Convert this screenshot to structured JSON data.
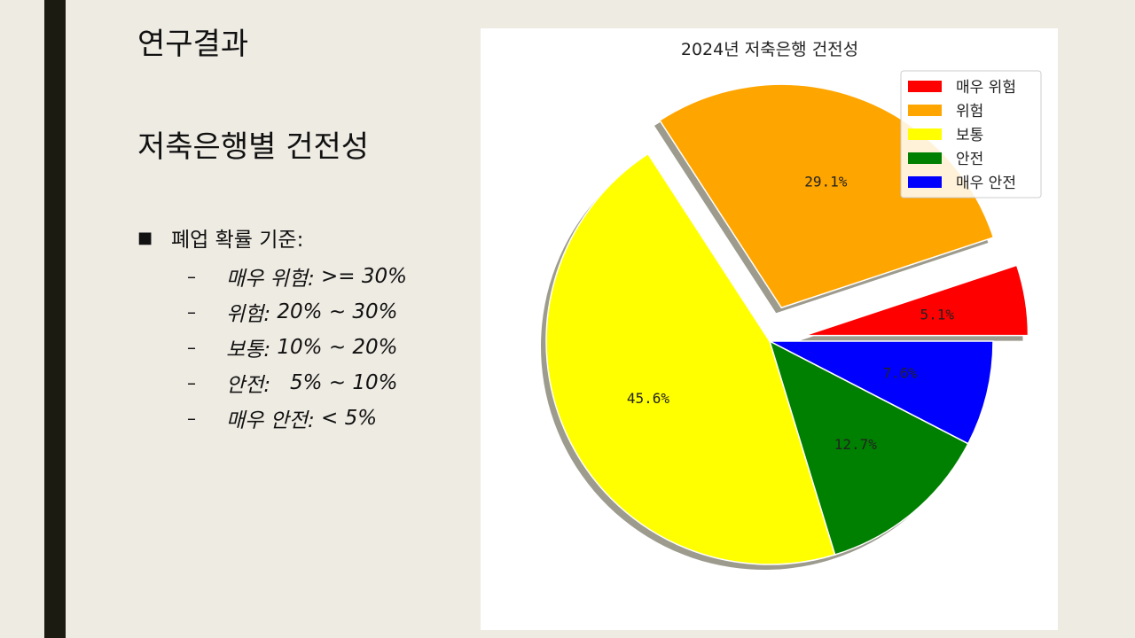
{
  "slide": {
    "title": "연구결과",
    "subtitle": "저축은행별 건전성"
  },
  "criteria": {
    "heading": "폐업 확률 기준:",
    "items": [
      {
        "label": "매우 위험:",
        "value": " >= 30%"
      },
      {
        "label": "위험:",
        "value": " 20% ~ 30%"
      },
      {
        "label": "보통:",
        "value": " 10% ~ 20%"
      },
      {
        "label": "안전:",
        "value": "   5% ~ 10%"
      },
      {
        "label": "매우 안전:",
        "value": " < 5%"
      }
    ]
  },
  "colors": {
    "background": "#eeebe3",
    "accent_bar": "#1b1b12"
  },
  "chart_data": {
    "type": "pie",
    "title": "2024년 저축은행 건전성",
    "legend_position": "top-right",
    "shadow": true,
    "start_angle_deg": 0,
    "direction": "counterclockwise",
    "slices": [
      {
        "name": "매우 위험",
        "value": 5.1,
        "label": "5.1%",
        "color": "#ff0000",
        "exploded": true
      },
      {
        "name": "위험",
        "value": 29.1,
        "label": "29.1%",
        "color": "#ffa500",
        "exploded": true
      },
      {
        "name": "보통",
        "value": 45.6,
        "label": "45.6%",
        "color": "#ffff00",
        "exploded": false
      },
      {
        "name": "안전",
        "value": 12.7,
        "label": "12.7%",
        "color": "#008000",
        "exploded": false
      },
      {
        "name": "매우 안전",
        "value": 7.6,
        "label": "7.6%",
        "color": "#0000ff",
        "exploded": false
      }
    ]
  }
}
